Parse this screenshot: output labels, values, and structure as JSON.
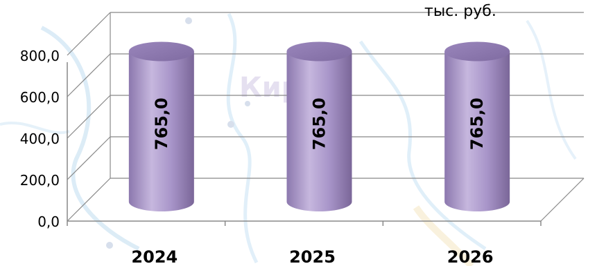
{
  "chart_data": {
    "type": "bar",
    "style": "3d-cylinder",
    "categories": [
      "2024",
      "2025",
      "2026"
    ],
    "values": [
      765.0,
      765.0,
      765.0
    ],
    "value_labels": [
      "765,0",
      "765,0",
      "765,0"
    ],
    "unit": "тыс. руб.",
    "ylim": [
      0,
      800
    ],
    "y_ticks": [
      "0,0",
      "200,0",
      "400,0",
      "600,0",
      "800,0"
    ],
    "grid": true,
    "bar_color": "#A694C4",
    "background": "map-watermark"
  }
}
